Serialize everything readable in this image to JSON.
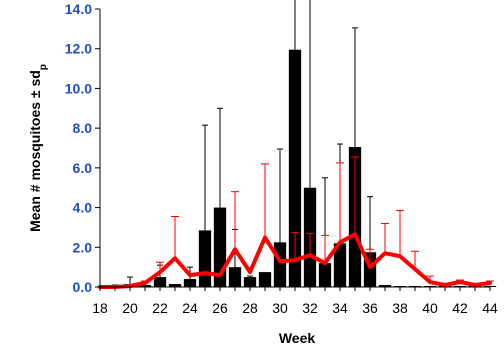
{
  "chart_data": {
    "type": "bar",
    "xlabel": "Week",
    "ylabel": "Mean # mosquitoes  ± sd",
    "ylabel_subscript": "p",
    "ylim": [
      0,
      14
    ],
    "xlim": [
      18,
      44
    ],
    "yticks": [
      "0.0",
      "2.0",
      "4.0",
      "6.0",
      "8.0",
      "10.0",
      "12.0",
      "14.0"
    ],
    "xticks": [
      "18",
      "20",
      "22",
      "24",
      "26",
      "28",
      "30",
      "32",
      "34",
      "36",
      "38",
      "40",
      "42",
      "44"
    ],
    "grid": false,
    "colors": {
      "bars": "#000000",
      "line": "#ff0000",
      "yticks": "#1f4fbf",
      "bar_error": "#000000",
      "line_error": "#ff0000"
    },
    "series": [
      {
        "kind": "bar",
        "x": [
          18,
          19,
          20,
          21,
          22,
          23,
          24,
          25,
          26,
          27,
          28,
          29,
          30,
          31,
          32,
          33,
          34,
          35,
          36,
          37,
          38,
          39,
          40,
          41,
          42,
          43,
          44
        ],
        "values": [
          0.0,
          0.05,
          0.15,
          0.1,
          0.5,
          0.15,
          0.4,
          2.85,
          4.0,
          1.0,
          0.5,
          0.75,
          2.25,
          11.95,
          5.0,
          1.2,
          2.2,
          7.05,
          1.75,
          0.1,
          0.05,
          0.05,
          0.05,
          0.05,
          0.05,
          0.05,
          0.05
        ],
        "error": [
          0.0,
          0.05,
          0.35,
          0.1,
          0.6,
          0.0,
          0.6,
          5.3,
          5.0,
          1.9,
          0.05,
          0.0,
          4.7,
          5.0,
          11.0,
          4.3,
          5.0,
          6.0,
          2.8,
          0.0,
          0.0,
          0.0,
          0.0,
          0.0,
          0.0,
          0.0,
          0.0
        ]
      },
      {
        "kind": "line",
        "x": [
          18,
          19,
          20,
          21,
          22,
          23,
          24,
          25,
          26,
          27,
          28,
          29,
          30,
          31,
          32,
          33,
          34,
          35,
          36,
          37,
          38,
          39,
          40,
          41,
          42,
          43,
          44
        ],
        "values": [
          0.0,
          0.0,
          0.05,
          0.2,
          0.75,
          1.45,
          0.6,
          0.7,
          0.6,
          1.9,
          0.75,
          2.5,
          1.3,
          1.35,
          1.6,
          1.2,
          2.25,
          2.65,
          1.0,
          1.7,
          1.55,
          0.9,
          0.25,
          0.1,
          0.25,
          0.1,
          0.2
        ],
        "error": [
          0.0,
          0.0,
          0.0,
          0.1,
          0.5,
          2.1,
          0.0,
          0.0,
          0.0,
          2.9,
          0.0,
          3.7,
          0.0,
          1.4,
          1.1,
          1.4,
          4.0,
          3.9,
          0.9,
          1.5,
          2.3,
          0.9,
          0.3,
          0.0,
          0.1,
          0.0,
          0.1
        ]
      }
    ]
  }
}
